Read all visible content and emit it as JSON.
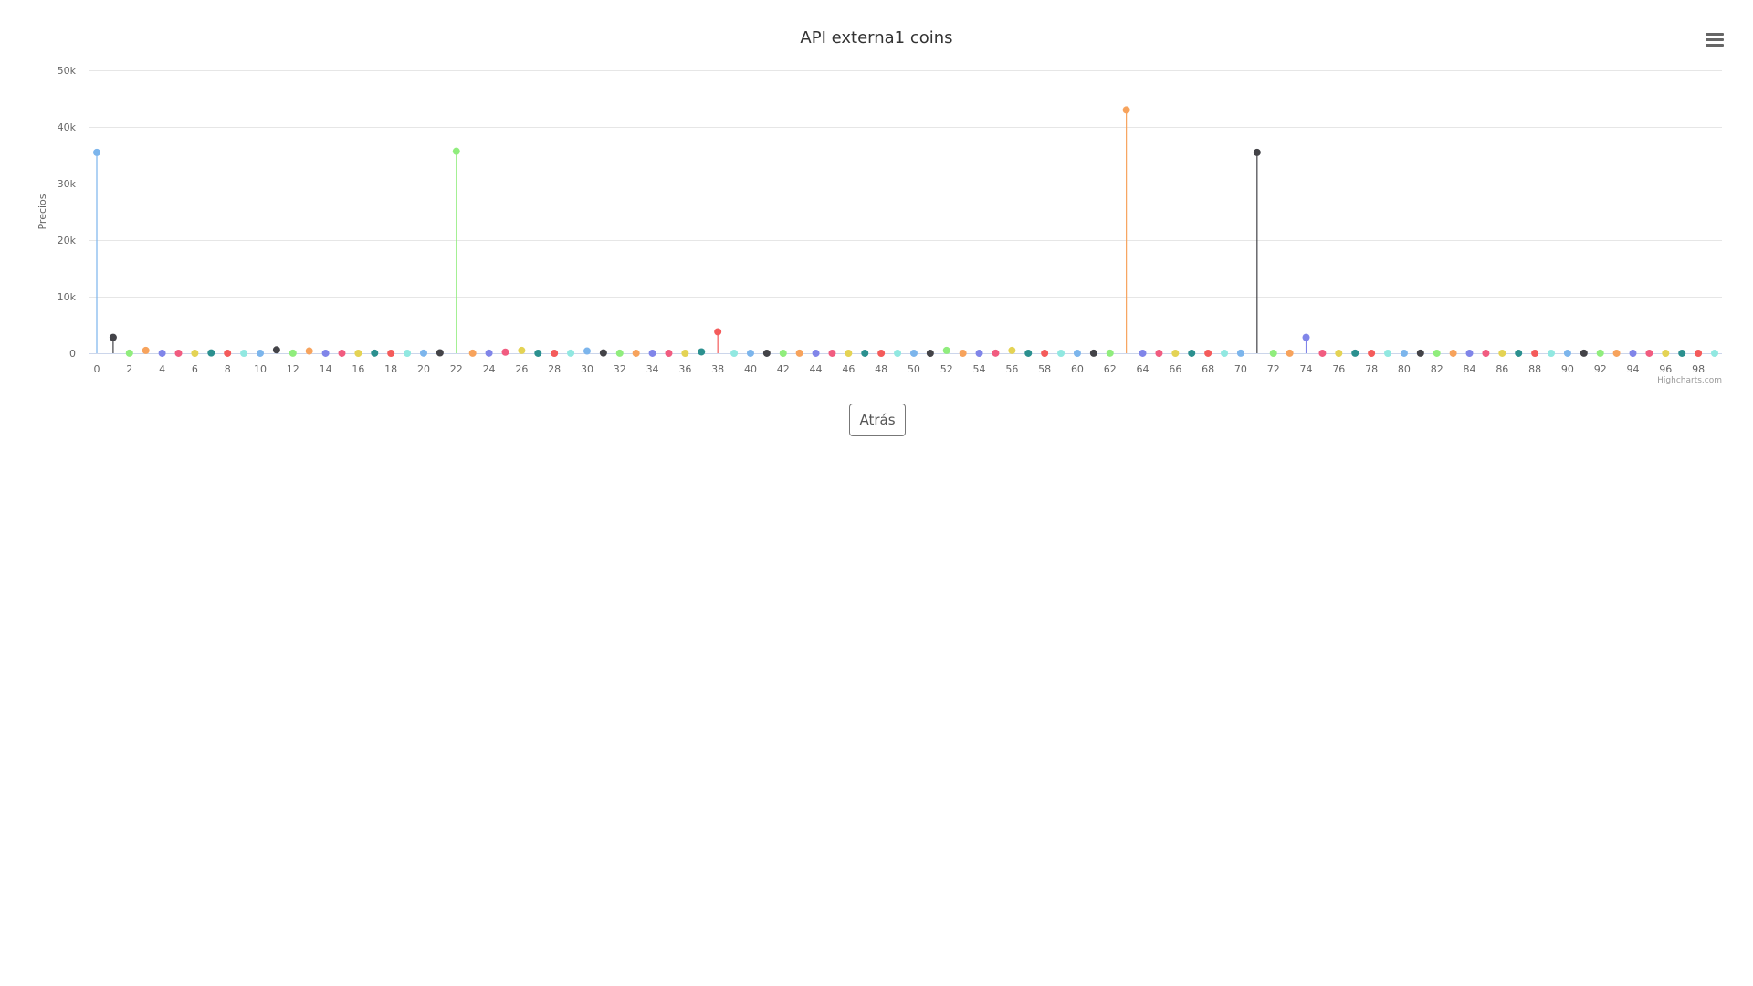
{
  "page": {
    "back_label": "Atrás",
    "menu_icon": "hamburger-menu-icon"
  },
  "chart_data": {
    "type": "lollipop",
    "title": "API externa1 coins",
    "xlabel": "",
    "ylabel": "Precios",
    "xlim": [
      0,
      99
    ],
    "ylim": [
      0,
      50000
    ],
    "y_tick_labels": [
      "0",
      "10k",
      "20k",
      "30k",
      "40k",
      "50k"
    ],
    "y_tick_values": [
      0,
      10000,
      20000,
      30000,
      40000,
      50000
    ],
    "x_tick_labels": [
      "0",
      "2",
      "4",
      "6",
      "8",
      "10",
      "12",
      "14",
      "16",
      "18",
      "20",
      "22",
      "24",
      "26",
      "28",
      "30",
      "32",
      "34",
      "36",
      "38",
      "40",
      "42",
      "44",
      "46",
      "48",
      "50",
      "52",
      "54",
      "56",
      "58",
      "60",
      "62",
      "64",
      "66",
      "68",
      "70",
      "72",
      "74",
      "76",
      "78",
      "80",
      "82",
      "84",
      "86",
      "88",
      "90",
      "92",
      "94",
      "96",
      "98"
    ],
    "grid": true,
    "legend": "none",
    "credits": "Highcharts.com",
    "palette": [
      "#7cb5ec",
      "#434348",
      "#90ed7d",
      "#f7a35c",
      "#8085e9",
      "#f15c80",
      "#e4d354",
      "#2b908f",
      "#f45b5b",
      "#91e8e1"
    ],
    "x": [
      0,
      1,
      2,
      3,
      4,
      5,
      6,
      7,
      8,
      9,
      10,
      11,
      12,
      13,
      14,
      15,
      16,
      17,
      18,
      19,
      20,
      21,
      22,
      23,
      24,
      25,
      26,
      27,
      28,
      29,
      30,
      31,
      32,
      33,
      34,
      35,
      36,
      37,
      38,
      39,
      40,
      41,
      42,
      43,
      44,
      45,
      46,
      47,
      48,
      49,
      50,
      51,
      52,
      53,
      54,
      55,
      56,
      57,
      58,
      59,
      60,
      61,
      62,
      63,
      64,
      65,
      66,
      67,
      68,
      69,
      70,
      71,
      72,
      73,
      74,
      75,
      76,
      77,
      78,
      79,
      80,
      81,
      82,
      83,
      84,
      85,
      86,
      87,
      88,
      89,
      90,
      91,
      92,
      93,
      94,
      95,
      96,
      97,
      98,
      99
    ],
    "values": [
      35500,
      2800,
      20,
      500,
      10,
      5,
      1,
      60,
      5,
      1,
      5,
      600,
      20,
      400,
      5,
      10,
      1,
      30,
      1,
      1,
      30,
      80,
      35700,
      15,
      30,
      200,
      500,
      10,
      1,
      20,
      400,
      60,
      15,
      10,
      10,
      1,
      1,
      250,
      3800,
      1,
      10,
      5,
      1,
      20,
      10,
      10,
      1,
      10,
      1,
      1,
      5,
      1,
      500,
      10,
      1,
      30,
      500,
      10,
      1,
      2,
      1,
      15,
      25,
      43000,
      10,
      1,
      1,
      10,
      5,
      1,
      20,
      35500,
      1,
      20,
      2800,
      5,
      1,
      20,
      1,
      1,
      5,
      20,
      10,
      5,
      1,
      1,
      10,
      5,
      1,
      1,
      5,
      20,
      20,
      10,
      1,
      5,
      1,
      10,
      1,
      1
    ]
  }
}
